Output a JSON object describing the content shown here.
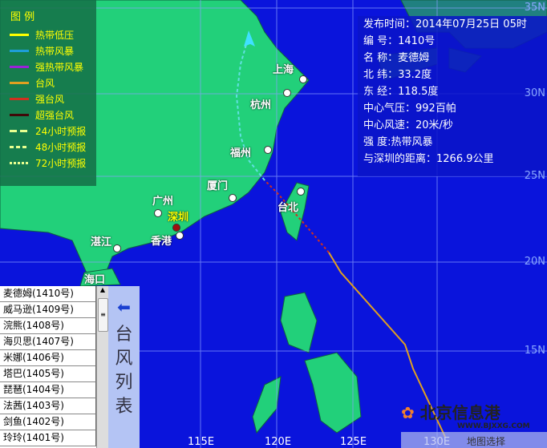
{
  "legend": {
    "title": "图 例",
    "items": [
      {
        "label": "热带低压",
        "color": "#ffff00",
        "style": "solid"
      },
      {
        "label": "热带风暴",
        "color": "#1e9ed8",
        "style": "solid"
      },
      {
        "label": "强热带风暴",
        "color": "#9a22d8",
        "style": "solid"
      },
      {
        "label": "台风",
        "color": "#e0a020",
        "style": "solid"
      },
      {
        "label": "强台风",
        "color": "#d03020",
        "style": "solid"
      },
      {
        "label": "超强台风",
        "color": "#400808",
        "style": "solid"
      },
      {
        "label": "24小时预报",
        "color": "#e8ff90",
        "style": "dash"
      },
      {
        "label": "48小时预报",
        "color": "#e8ff90",
        "style": "dash-short"
      },
      {
        "label": "72小时预报",
        "color": "#e8ff90",
        "style": "dot"
      }
    ]
  },
  "info": [
    "发布时间：2014年07月25日 05时",
    "编 号：1410号",
    "名 称：麦德姆",
    "北 纬：33.2度",
    "东 经：118.5度",
    "中心气压：992百帕",
    "中心风速：20米/秒",
    "强 度:热带风暴",
    "与深圳的距离：1266.9公里"
  ],
  "cities": [
    "上海",
    "杭州",
    "福州",
    "厦门",
    "广州",
    "深圳",
    "香港",
    "湛江",
    "台北",
    "海口"
  ],
  "lat_labels": [
    "35N",
    "30N",
    "25N",
    "20N",
    "15N"
  ],
  "lon_labels": [
    "115E",
    "120E",
    "125E",
    "130E"
  ],
  "typhoon_list": [
    "麦德姆(1410号)",
    "威马逊(1409号)",
    "浣熊(1408号)",
    "海贝思(1407号)",
    "米娜(1406号)",
    "塔巴(1405号)",
    "琵琶(1404号)",
    "法茜(1403号)",
    "剑鱼(1402号)",
    "玲玲(1401号)"
  ],
  "side_label": "台风列表",
  "logo": {
    "name": "北京信息港",
    "url_text": "WWW.BJXXG.COM"
  },
  "bottom_text": "地图选择"
}
